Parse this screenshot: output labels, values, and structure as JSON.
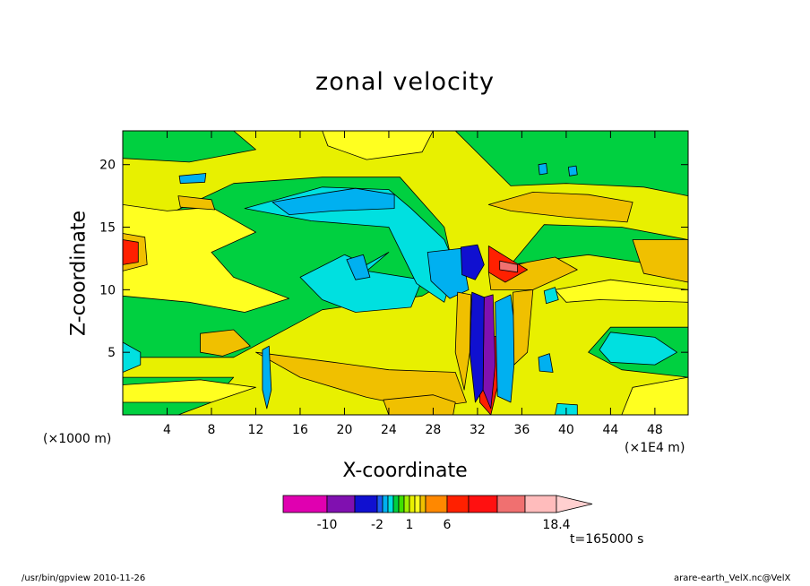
{
  "chart_data": {
    "type": "heatmap",
    "title": "zonal velocity",
    "xlabel": "X-coordinate",
    "ylabel": "Z-coordinate",
    "x_unit": "(×1E4 m)",
    "z_unit": "(×1000 m)",
    "x_range": [
      0,
      51
    ],
    "z_range": [
      0,
      22.7
    ],
    "x_ticks": [
      4,
      8,
      12,
      16,
      20,
      24,
      28,
      32,
      36,
      40,
      44,
      48
    ],
    "x_tick_labels": [
      "4",
      "8",
      "12",
      "16",
      "20",
      "24",
      "28",
      "32",
      "36",
      "40",
      "44",
      "48"
    ],
    "z_ticks": [
      5,
      10,
      15,
      20
    ],
    "z_tick_labels": [
      "5",
      "10",
      "15",
      "20"
    ],
    "colorbar": {
      "levels": [
        -14,
        -10,
        -6,
        -2,
        -1.5,
        -1,
        -0.5,
        0,
        0.5,
        1,
        1.5,
        2,
        4,
        6,
        8,
        10,
        12,
        14.2,
        18.4
      ],
      "colors": [
        "#e000b0",
        "#8010b0",
        "#1010d0",
        "#1e5cf0",
        "#00b0f0",
        "#00e0e0",
        "#00d040",
        "#40e000",
        "#a0f000",
        "#e8f000",
        "#ffff20",
        "#f0c000",
        "#ff8800",
        "#ff2000",
        "#ff1010",
        "#f07070",
        "#ffbcbc",
        "#ffd0d0"
      ],
      "labels": [
        "-10",
        "-2",
        "1",
        "6",
        "18.4"
      ]
    },
    "regions": [
      {
        "value": 1,
        "points": [
          [
            0,
            0
          ],
          [
            51,
            0
          ],
          [
            51,
            22.7
          ],
          [
            0,
            22.7
          ]
        ]
      },
      {
        "value": -0.3,
        "points": [
          [
            0,
            4.6
          ],
          [
            10,
            4.6
          ],
          [
            18,
            8.4
          ],
          [
            27,
            9.5
          ],
          [
            30,
            11
          ],
          [
            29,
            15
          ],
          [
            25,
            19
          ],
          [
            18,
            19
          ],
          [
            10,
            18.5
          ],
          [
            4,
            16
          ],
          [
            0,
            16.5
          ]
        ]
      },
      {
        "value": -0.3,
        "points": [
          [
            0,
            22.7
          ],
          [
            10,
            22.7
          ],
          [
            12,
            21.2
          ],
          [
            6,
            20.2
          ],
          [
            0,
            20.5
          ]
        ]
      },
      {
        "value": -0.3,
        "points": [
          [
            30,
            22.7
          ],
          [
            51,
            22.7
          ],
          [
            51,
            17.5
          ],
          [
            47,
            18.2
          ],
          [
            40,
            18.5
          ],
          [
            35,
            18.3
          ]
        ]
      },
      {
        "value": -0.3,
        "points": [
          [
            44,
            7
          ],
          [
            51,
            7
          ],
          [
            51,
            3
          ],
          [
            45,
            3.6
          ],
          [
            42,
            5
          ]
        ]
      },
      {
        "value": -0.3,
        "points": [
          [
            0,
            0
          ],
          [
            5,
            0
          ],
          [
            8,
            1
          ],
          [
            10,
            3
          ],
          [
            5,
            3
          ],
          [
            0,
            3
          ]
        ]
      },
      {
        "value": -0.3,
        "points": [
          [
            35,
            12
          ],
          [
            42,
            12.8
          ],
          [
            48,
            12
          ],
          [
            51,
            11
          ],
          [
            51,
            14
          ],
          [
            45,
            15
          ],
          [
            38,
            15.2
          ]
        ]
      },
      {
        "value": -0.6,
        "points": [
          [
            16,
            11
          ],
          [
            20,
            12.8
          ],
          [
            22,
            12
          ],
          [
            24,
            13
          ],
          [
            22,
            11.5
          ],
          [
            27,
            10.8
          ],
          [
            26,
            8.6
          ],
          [
            21,
            8.2
          ],
          [
            18,
            9.2
          ]
        ]
      },
      {
        "value": -0.6,
        "points": [
          [
            11,
            16.5
          ],
          [
            18,
            18.2
          ],
          [
            24,
            18
          ],
          [
            26,
            16.5
          ],
          [
            29,
            14
          ],
          [
            30,
            12
          ],
          [
            29,
            9
          ],
          [
            26.5,
            10.5
          ],
          [
            24,
            15
          ],
          [
            17,
            15.5
          ]
        ]
      },
      {
        "value": -0.6,
        "points": [
          [
            5,
            14.6
          ],
          [
            8,
            15.3
          ],
          [
            9,
            14
          ],
          [
            7,
            12.8
          ],
          [
            4.6,
            13
          ]
        ]
      },
      {
        "value": -0.6,
        "points": [
          [
            44,
            6.6
          ],
          [
            48,
            6.2
          ],
          [
            50,
            5
          ],
          [
            48,
            4
          ],
          [
            44,
            4.2
          ],
          [
            43,
            5.2
          ]
        ]
      },
      {
        "value": -0.6,
        "points": [
          [
            0,
            5.8
          ],
          [
            1.6,
            5
          ],
          [
            1.6,
            4
          ],
          [
            0,
            3.4
          ]
        ]
      },
      {
        "value": -1.5,
        "points": [
          [
            13.5,
            17
          ],
          [
            18,
            17.7
          ],
          [
            21,
            18.1
          ],
          [
            24.5,
            17.6
          ],
          [
            24.5,
            16.5
          ],
          [
            19,
            16.3
          ],
          [
            15,
            16
          ]
        ]
      },
      {
        "value": -1.5,
        "points": [
          [
            27.5,
            13
          ],
          [
            30.5,
            13.3
          ],
          [
            31.2,
            10
          ],
          [
            29.5,
            9.3
          ],
          [
            27.8,
            10.7
          ]
        ]
      },
      {
        "value": -1.5,
        "points": [
          [
            5.1,
            19.1
          ],
          [
            7.5,
            19.3
          ],
          [
            7.4,
            18.6
          ],
          [
            5.2,
            18.5
          ]
        ]
      },
      {
        "value": -1.5,
        "points": [
          [
            20.2,
            12.4
          ],
          [
            21.7,
            12.8
          ],
          [
            22.3,
            11
          ],
          [
            21,
            10.8
          ]
        ]
      },
      {
        "value": -1.5,
        "points": [
          [
            37.5,
            4.6
          ],
          [
            38.5,
            4.9
          ],
          [
            38.8,
            3.4
          ],
          [
            37.6,
            3.5
          ]
        ]
      },
      {
        "value": -6,
        "points": [
          [
            30.5,
            13.4
          ],
          [
            32,
            13.6
          ],
          [
            32.6,
            12
          ],
          [
            31.8,
            10.8
          ],
          [
            30.6,
            11.2
          ]
        ]
      },
      {
        "value": 1.5,
        "points": [
          [
            0,
            16.8
          ],
          [
            4,
            16.3
          ],
          [
            8,
            16.6
          ],
          [
            12,
            14.6
          ],
          [
            8,
            13
          ],
          [
            10,
            11
          ],
          [
            15,
            9.3
          ],
          [
            11,
            8.2
          ],
          [
            6,
            9
          ],
          [
            0,
            9.5
          ]
        ]
      },
      {
        "value": 1.5,
        "points": [
          [
            18,
            22.7
          ],
          [
            28,
            22.7
          ],
          [
            27,
            21
          ],
          [
            22,
            20.4
          ],
          [
            18.5,
            21.5
          ]
        ]
      },
      {
        "value": 1.5,
        "points": [
          [
            45,
            0
          ],
          [
            51,
            0
          ],
          [
            51,
            3
          ],
          [
            46,
            2.2
          ]
        ]
      },
      {
        "value": 1.5,
        "points": [
          [
            0,
            1
          ],
          [
            3,
            1
          ],
          [
            8,
            1
          ],
          [
            12,
            2.2
          ],
          [
            7,
            2.8
          ],
          [
            0,
            2.4
          ]
        ]
      },
      {
        "value": 1.5,
        "points": [
          [
            39,
            10
          ],
          [
            44,
            10.8
          ],
          [
            51,
            10
          ],
          [
            51,
            9
          ],
          [
            43,
            9.2
          ],
          [
            40,
            9
          ]
        ]
      },
      {
        "value": 3,
        "points": [
          [
            33,
            16.8
          ],
          [
            37,
            17.8
          ],
          [
            42,
            17.6
          ],
          [
            46,
            17
          ],
          [
            45.5,
            15.4
          ],
          [
            40,
            15.8
          ],
          [
            35,
            16.3
          ]
        ]
      },
      {
        "value": 3,
        "points": [
          [
            12,
            5
          ],
          [
            19,
            4.2
          ],
          [
            24,
            3.6
          ],
          [
            30,
            3.4
          ],
          [
            31,
            1
          ],
          [
            27,
            0.5
          ],
          [
            22,
            1.4
          ],
          [
            16,
            3
          ]
        ]
      },
      {
        "value": 3,
        "points": [
          [
            0,
            14.5
          ],
          [
            2,
            14.2
          ],
          [
            2.2,
            12
          ],
          [
            0,
            11.5
          ]
        ]
      },
      {
        "value": 3,
        "points": [
          [
            46,
            14
          ],
          [
            51,
            14
          ],
          [
            51,
            10.6
          ],
          [
            47,
            11.3
          ]
        ]
      },
      {
        "value": 3,
        "points": [
          [
            33,
            11.4
          ],
          [
            36.5,
            12.2
          ],
          [
            39,
            12.6
          ],
          [
            41,
            11.6
          ],
          [
            37,
            10
          ],
          [
            33.2,
            10
          ]
        ]
      },
      {
        "value": 3,
        "points": [
          [
            5,
            17.5
          ],
          [
            8,
            17.2
          ],
          [
            8.3,
            16.4
          ],
          [
            5.2,
            16.6
          ]
        ]
      },
      {
        "value": 3,
        "points": [
          [
            23.5,
            1.2
          ],
          [
            28,
            1.6
          ],
          [
            30,
            1
          ],
          [
            29.8,
            0
          ],
          [
            24,
            0
          ]
        ]
      },
      {
        "value": 3,
        "points": [
          [
            7,
            6.5
          ],
          [
            10,
            6.8
          ],
          [
            11.5,
            5.5
          ],
          [
            9,
            4.7
          ],
          [
            7,
            5
          ]
        ]
      },
      {
        "value": 6,
        "points": [
          [
            33,
            13.5
          ],
          [
            35,
            12.4
          ],
          [
            36.5,
            11.6
          ],
          [
            34.5,
            10.6
          ],
          [
            33,
            11.4
          ]
        ]
      },
      {
        "value": 6,
        "points": [
          [
            32.2,
            6
          ],
          [
            33.8,
            6.3
          ],
          [
            34,
            3
          ],
          [
            33.2,
            0
          ],
          [
            32.2,
            1
          ]
        ]
      },
      {
        "value": 6,
        "points": [
          [
            0,
            14
          ],
          [
            1.4,
            13.8
          ],
          [
            1.4,
            12.2
          ],
          [
            0,
            12
          ]
        ]
      },
      {
        "value": 10,
        "points": [
          [
            34,
            12.3
          ],
          [
            35.6,
            12
          ],
          [
            35.6,
            11.4
          ],
          [
            34,
            11.6
          ]
        ]
      },
      {
        "value": -10,
        "points": [
          [
            32.6,
            9.4
          ],
          [
            33.4,
            9.6
          ],
          [
            33.6,
            4
          ],
          [
            33.2,
            0.5
          ],
          [
            32.5,
            2
          ]
        ]
      },
      {
        "value": -6,
        "points": [
          [
            31.5,
            9.8
          ],
          [
            32.6,
            9.4
          ],
          [
            32.5,
            2
          ],
          [
            31.8,
            1
          ],
          [
            31.3,
            5
          ]
        ]
      },
      {
        "value": -1.5,
        "points": [
          [
            33.6,
            9
          ],
          [
            35,
            9.6
          ],
          [
            35.5,
            6
          ],
          [
            35,
            1
          ],
          [
            33.8,
            1.5
          ]
        ]
      },
      {
        "value": 3,
        "points": [
          [
            30.2,
            9.8
          ],
          [
            31.4,
            9.6
          ],
          [
            31.3,
            5
          ],
          [
            30.8,
            2
          ],
          [
            30,
            5
          ]
        ]
      },
      {
        "value": 3,
        "points": [
          [
            35.2,
            9.8
          ],
          [
            37,
            10
          ],
          [
            36.5,
            5
          ],
          [
            35.3,
            4
          ]
        ]
      },
      {
        "value": -1.5,
        "points": [
          [
            12.6,
            5.2
          ],
          [
            13.2,
            5.5
          ],
          [
            13.4,
            2
          ],
          [
            13,
            0.5
          ],
          [
            12.6,
            2
          ]
        ]
      },
      {
        "value": -0.6,
        "points": [
          [
            38,
            9.9
          ],
          [
            39,
            10.2
          ],
          [
            39.3,
            9.2
          ],
          [
            38.2,
            8.9
          ]
        ]
      },
      {
        "value": -1.5,
        "points": [
          [
            40.2,
            19.8
          ],
          [
            40.9,
            19.9
          ],
          [
            41,
            19.2
          ],
          [
            40.3,
            19.1
          ]
        ]
      },
      {
        "value": -1.5,
        "points": [
          [
            37.5,
            20
          ],
          [
            38.2,
            20.1
          ],
          [
            38.3,
            19.3
          ],
          [
            37.6,
            19.2
          ]
        ]
      },
      {
        "value": -0.6,
        "points": [
          [
            39,
            0
          ],
          [
            41,
            0
          ],
          [
            41,
            0.8
          ],
          [
            39.2,
            0.9
          ]
        ]
      }
    ]
  },
  "footer": {
    "time": "t=165000 s",
    "left": "/usr/bin/gpview  2010-11-26",
    "right": "arare-earth_VelX.nc@VelX"
  }
}
